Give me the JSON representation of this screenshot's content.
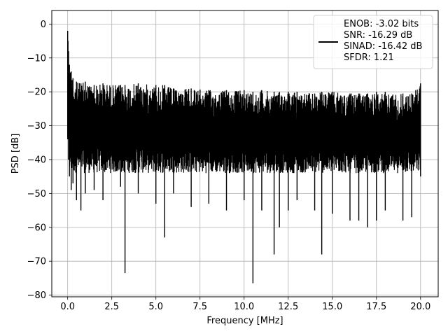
{
  "chart_data": {
    "type": "line",
    "xlabel": "Frequency [MHz]",
    "ylabel": "PSD [dB]",
    "xlim": [
      -0.9,
      21.0
    ],
    "ylim": [
      -80.5,
      4.0
    ],
    "x_ticks": [
      0.0,
      2.5,
      5.0,
      7.5,
      10.0,
      12.5,
      15.0,
      17.5,
      20.0
    ],
    "x_tick_labels": [
      "0.0",
      "2.5",
      "5.0",
      "7.5",
      "10.0",
      "12.5",
      "15.0",
      "17.5",
      "20.0"
    ],
    "y_ticks": [
      0,
      -10,
      -20,
      -30,
      -40,
      -50,
      -60,
      -70,
      -80
    ],
    "y_tick_labels": [
      "0",
      "−10",
      "−20",
      "−30",
      "−40",
      "−50",
      "−60",
      "−70",
      "−80"
    ],
    "grid": true,
    "legend_position": "top-right",
    "series": [
      {
        "name": "ENOB: -3.02 bits\nSNR: -16.29 dB\nSINAD: -16.42 dB\nSFDR: 1.21",
        "color": "#000000",
        "x": [
          0.0,
          0.02,
          0.05,
          0.1,
          0.2,
          0.3,
          0.5,
          0.75,
          1.0,
          1.5,
          2.0,
          3.0,
          3.25,
          4.0,
          5.0,
          5.5,
          6.0,
          7.0,
          8.0,
          9.0,
          10.0,
          10.5,
          11.0,
          11.7,
          12.0,
          12.5,
          13.0,
          14.0,
          14.4,
          15.0,
          16.0,
          16.5,
          17.0,
          17.5,
          18.0,
          19.0,
          19.5,
          20.0
        ],
        "y_upper": [
          -2.0,
          -5.0,
          -8.0,
          -12.0,
          -14.0,
          -16.0,
          -17.0,
          -17.5,
          -17.0,
          -18.0,
          -17.5,
          -18.0,
          -18.0,
          -17.5,
          -18.0,
          -18.0,
          -19.0,
          -19.0,
          -19.5,
          -19.5,
          -19.5,
          -20.0,
          -19.5,
          -20.0,
          -20.0,
          -20.0,
          -20.0,
          -20.5,
          -20.0,
          -20.0,
          -20.5,
          -20.5,
          -20.5,
          -20.0,
          -20.0,
          -20.5,
          -20.5,
          -17.5
        ],
        "y_lower": [
          -34.0,
          -34.0,
          -40.0,
          -45.0,
          -49.0,
          -47.0,
          -52.0,
          -55.0,
          -50.0,
          -49.0,
          -52.0,
          -48.0,
          -73.5,
          -50.0,
          -53.0,
          -63.0,
          -50.0,
          -54.0,
          -53.0,
          -55.0,
          -52.0,
          -76.5,
          -55.0,
          -68.0,
          -60.0,
          -55.0,
          -52.0,
          -55.0,
          -68.0,
          -56.0,
          -58.0,
          -58.0,
          -60.0,
          -58.0,
          -55.0,
          -58.0,
          -57.0,
          -45.0
        ]
      }
    ]
  }
}
